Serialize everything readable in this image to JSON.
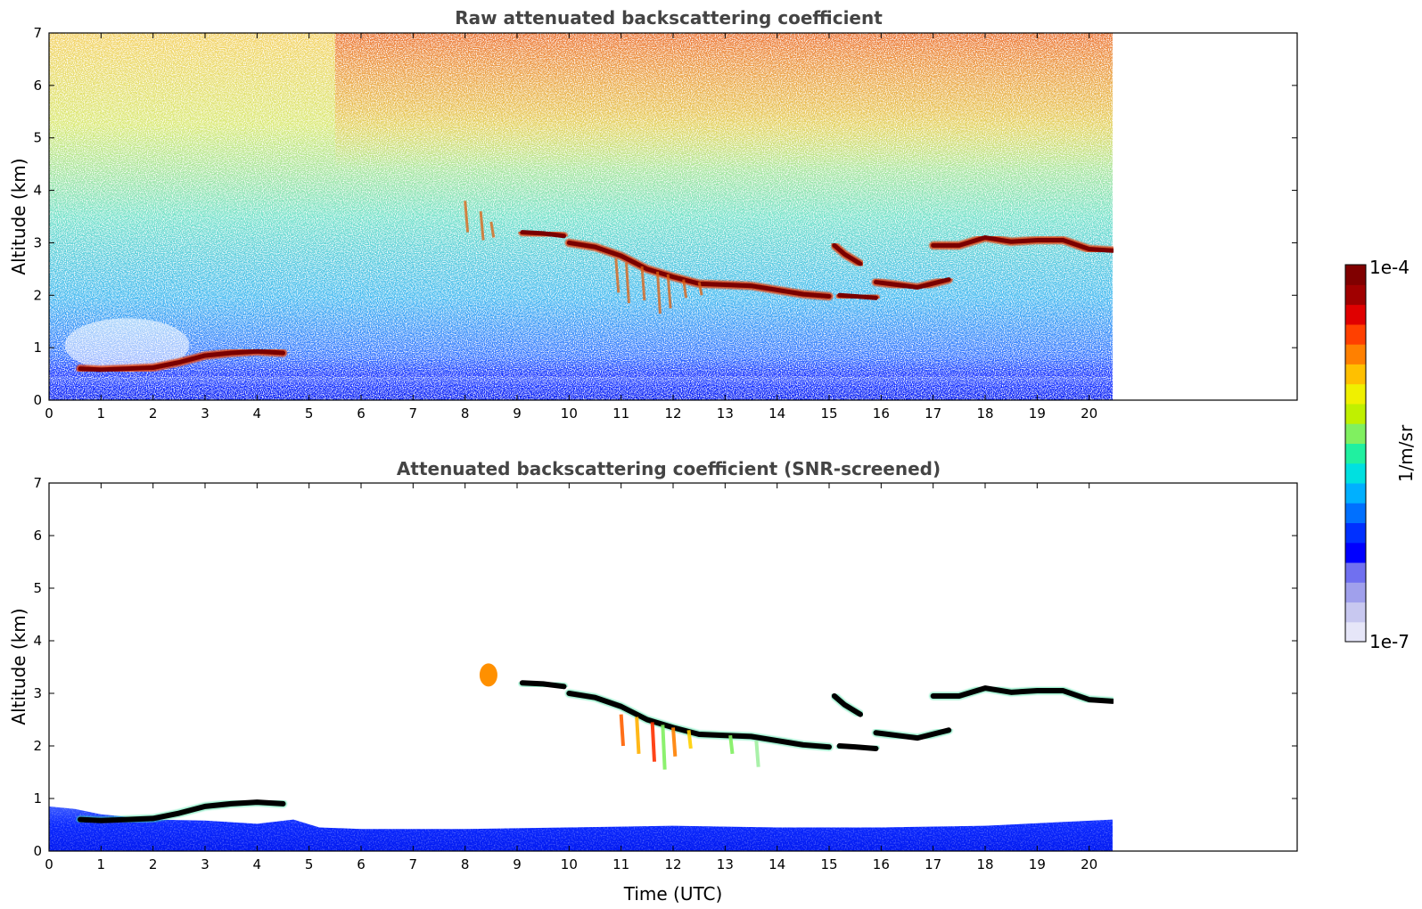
{
  "chart_data": [
    {
      "type": "heatmap",
      "title": "Raw attenuated backscattering coefficient",
      "xlabel": "",
      "ylabel": "Altitude (km)",
      "xlim": [
        0,
        24
      ],
      "ylim": [
        0,
        7
      ],
      "data_extent_x": [
        0,
        20.45
      ],
      "x_ticks": [
        "0",
        "1",
        "2",
        "3",
        "4",
        "5",
        "6",
        "7",
        "8",
        "9",
        "10",
        "11",
        "12",
        "13",
        "14",
        "15",
        "16",
        "17",
        "18",
        "19",
        "20"
      ],
      "y_ticks": [
        "0",
        "1",
        "2",
        "3",
        "4",
        "5",
        "6",
        "7"
      ],
      "cloud_layers": [
        {
          "x": [
            0.6,
            1.0,
            1.5,
            2.0,
            2.5,
            3.0,
            3.5,
            4.0,
            4.5
          ],
          "y": [
            0.6,
            0.58,
            0.6,
            0.62,
            0.72,
            0.85,
            0.9,
            0.93,
            0.9
          ]
        },
        {
          "x": [
            9.1,
            9.5,
            9.9
          ],
          "y": [
            3.2,
            3.18,
            3.13
          ]
        },
        {
          "x": [
            10.0,
            10.5,
            11.0,
            11.5,
            12.0,
            12.5,
            13.0,
            13.5,
            14.0,
            14.5,
            15.0
          ],
          "y": [
            3.0,
            2.92,
            2.75,
            2.5,
            2.35,
            2.22,
            2.2,
            2.18,
            2.1,
            2.02,
            1.98
          ]
        },
        {
          "x": [
            15.1,
            15.3,
            15.6
          ],
          "y": [
            2.95,
            2.78,
            2.6
          ]
        },
        {
          "x": [
            15.2,
            15.5,
            15.9
          ],
          "y": [
            2.0,
            1.98,
            1.95
          ]
        },
        {
          "x": [
            15.9,
            16.3,
            16.7,
            17.1,
            17.3
          ],
          "y": [
            2.25,
            2.2,
            2.15,
            2.25,
            2.3
          ]
        },
        {
          "x": [
            17.0,
            17.5,
            18.0,
            18.5,
            19.0,
            19.5,
            20.0,
            20.45
          ],
          "y": [
            2.95,
            2.95,
            3.1,
            3.02,
            3.05,
            3.05,
            2.88,
            2.85
          ]
        }
      ]
    },
    {
      "type": "heatmap",
      "title": "Attenuated backscattering coefficient (SNR-screened)",
      "xlabel": "Time (UTC)",
      "ylabel": "Altitude (km)",
      "xlim": [
        0,
        24
      ],
      "ylim": [
        0,
        7
      ],
      "data_extent_x": [
        0,
        20.45
      ],
      "x_ticks": [
        "0",
        "1",
        "2",
        "3",
        "4",
        "5",
        "6",
        "7",
        "8",
        "9",
        "10",
        "11",
        "12",
        "13",
        "14",
        "15",
        "16",
        "17",
        "18",
        "19",
        "20"
      ],
      "y_ticks": [
        "0",
        "1",
        "2",
        "3",
        "4",
        "5",
        "6",
        "7"
      ]
    }
  ],
  "colorbar": {
    "label": "1/m/sr",
    "max_label": "1e-4",
    "min_label": "1e-7",
    "colors": [
      "#e6e6f8",
      "#c8c8f0",
      "#a0a0ec",
      "#7070f0",
      "#0000ff",
      "#0030ff",
      "#0070ff",
      "#00b0ff",
      "#00e0e0",
      "#20f0a0",
      "#80f060",
      "#c0f000",
      "#f0f000",
      "#ffc000",
      "#ff8000",
      "#ff4000",
      "#e00000",
      "#a00000",
      "#800000"
    ]
  }
}
